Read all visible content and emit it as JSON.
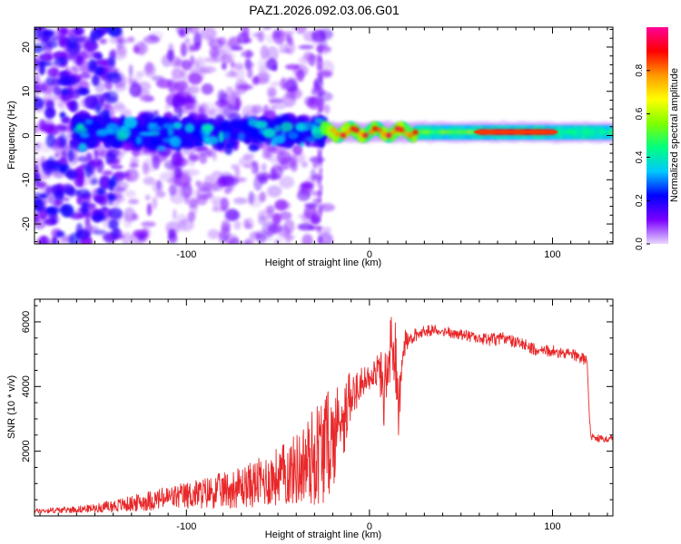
{
  "page_title": "PAZ1.2026.092.03.06.G01",
  "chart_data": [
    {
      "type": "heatmap",
      "title": "PAZ1.2026.092.03.06.G01",
      "xlabel": "Height of straight line (km)",
      "ylabel": "Frequency (Hz)",
      "xlim": [
        -183,
        133
      ],
      "ylim": [
        -24.5,
        24.5
      ],
      "xticks": [
        -100,
        0,
        100
      ],
      "xtick_labels": [
        "-100",
        "0",
        "100"
      ],
      "yticks": [
        -20,
        -10,
        0,
        10,
        20
      ],
      "ytick_labels": [
        "-20",
        "-10",
        "0",
        "10",
        "20"
      ],
      "grid": false,
      "colorbar": {
        "label": "Normalized spectral amplitude",
        "range": [
          0,
          1
        ],
        "ticks": [
          0.0,
          0.2,
          0.4,
          0.6,
          0.8
        ],
        "tick_labels": [
          "0.0",
          "0.2",
          "0.4",
          "0.6",
          "0.8"
        ],
        "colors": [
          "#e8d8ff",
          "#7a00ff",
          "#0000ff",
          "#00c8ff",
          "#00ff80",
          "#80ff00",
          "#ffff00",
          "#ff9900",
          "#ff0000",
          "#ff0099"
        ]
      },
      "regions": [
        {
          "name": "scattered weak signal",
          "x_range": [
            -183,
            -25
          ],
          "y_range": [
            -24.5,
            24.5
          ],
          "amplitude": 0.05
        },
        {
          "name": "cluster band",
          "x_range": [
            -160,
            -25
          ],
          "y_range": [
            -6,
            8
          ],
          "amplitude": 0.15
        },
        {
          "name": "concentrated carrier",
          "x_range": [
            -25,
            133
          ],
          "y_range": [
            -1.5,
            2.5
          ],
          "amplitude": 0.9
        }
      ]
    },
    {
      "type": "line",
      "xlabel": "Height of straight line (km)",
      "ylabel": "SNR (10 * v/v)",
      "xlim": [
        -183,
        133
      ],
      "ylim": [
        0,
        6700
      ],
      "xticks": [
        -100,
        0,
        100
      ],
      "xtick_labels": [
        "-100",
        "0",
        "100"
      ],
      "yticks": [
        2000,
        4000,
        6000
      ],
      "ytick_labels": [
        "2000",
        "4000",
        "6000"
      ],
      "grid": false,
      "series": [
        {
          "name": "SNR",
          "color": "#e8282a",
          "x": [
            -183,
            -170,
            -160,
            -150,
            -140,
            -130,
            -120,
            -110,
            -100,
            -90,
            -80,
            -70,
            -60,
            -50,
            -40,
            -35,
            -30,
            -25,
            -20,
            -17,
            -15,
            -13,
            -10,
            -7,
            -5,
            0,
            5,
            8,
            10,
            12,
            14,
            16,
            18,
            20,
            22,
            25,
            30,
            35,
            40,
            45,
            50,
            55,
            60,
            65,
            70,
            75,
            80,
            85,
            90,
            95,
            100,
            105,
            110,
            115,
            119,
            120,
            121,
            125,
            130,
            133
          ],
          "y": [
            130,
            150,
            170,
            200,
            250,
            300,
            380,
            450,
            500,
            560,
            620,
            700,
            800,
            950,
            1100,
            1200,
            1400,
            1600,
            1900,
            2400,
            3000,
            3400,
            3800,
            3800,
            4100,
            4300,
            4500,
            4000,
            4800,
            5300,
            4500,
            3300,
            5200,
            5400,
            5500,
            5600,
            5700,
            5750,
            5700,
            5650,
            5600,
            5550,
            5500,
            5450,
            5450,
            5500,
            5350,
            5300,
            5150,
            5100,
            5100,
            5050,
            5000,
            4900,
            4800,
            3200,
            2450,
            2400,
            2350,
            2400
          ],
          "amplitude": [
            110,
            130,
            150,
            180,
            280,
            350,
            450,
            520,
            600,
            700,
            800,
            900,
            1100,
            1300,
            1600,
            1900,
            2300,
            2500,
            2200,
            2000,
            1600,
            1200,
            900,
            600,
            500,
            400,
            500,
            1400,
            900,
            1200,
            1900,
            1000,
            600,
            400,
            250,
            200,
            180,
            170,
            170,
            170,
            170,
            170,
            180,
            190,
            200,
            200,
            180,
            180,
            180,
            180,
            180,
            180,
            180,
            180,
            180,
            100,
            110,
            110,
            110,
            110
          ]
        }
      ]
    }
  ]
}
